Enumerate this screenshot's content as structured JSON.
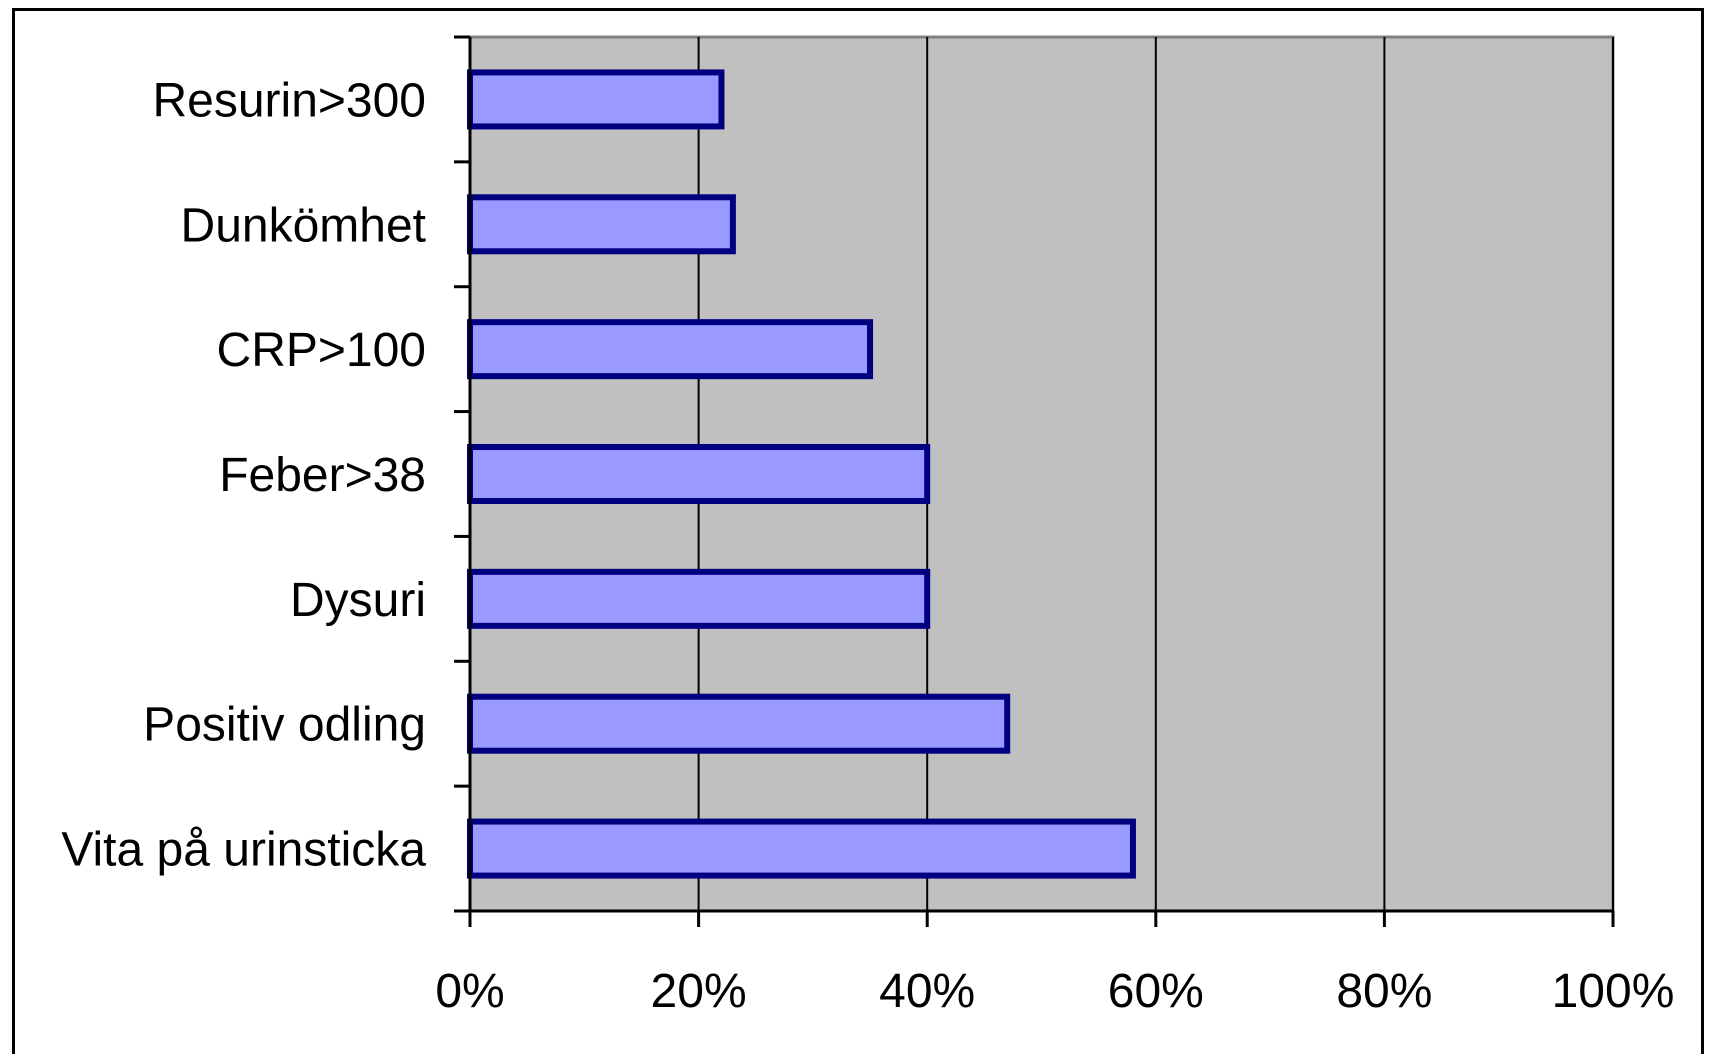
{
  "chart_data": {
    "type": "bar",
    "orientation": "horizontal",
    "categories": [
      "Resurin>300",
      "Dunkömhet",
      "CRP>100",
      "Feber>38",
      "Dysuri",
      "Positiv odling",
      "Vita på urinsticka"
    ],
    "values": [
      0.22,
      0.23,
      0.35,
      0.4,
      0.4,
      0.47,
      0.58
    ],
    "xlim": [
      0,
      1
    ],
    "x_ticks": [
      0,
      0.2,
      0.4,
      0.6,
      0.8,
      1.0
    ],
    "x_tick_labels": [
      "0%",
      "20%",
      "40%",
      "60%",
      "80%",
      "100%"
    ],
    "grid": "vertical",
    "legend": "none",
    "colors": {
      "bar_fill": "#9999ff",
      "bar_stroke": "#000080",
      "plot_background": "#c0c0c0",
      "gridline": "#000000"
    }
  }
}
